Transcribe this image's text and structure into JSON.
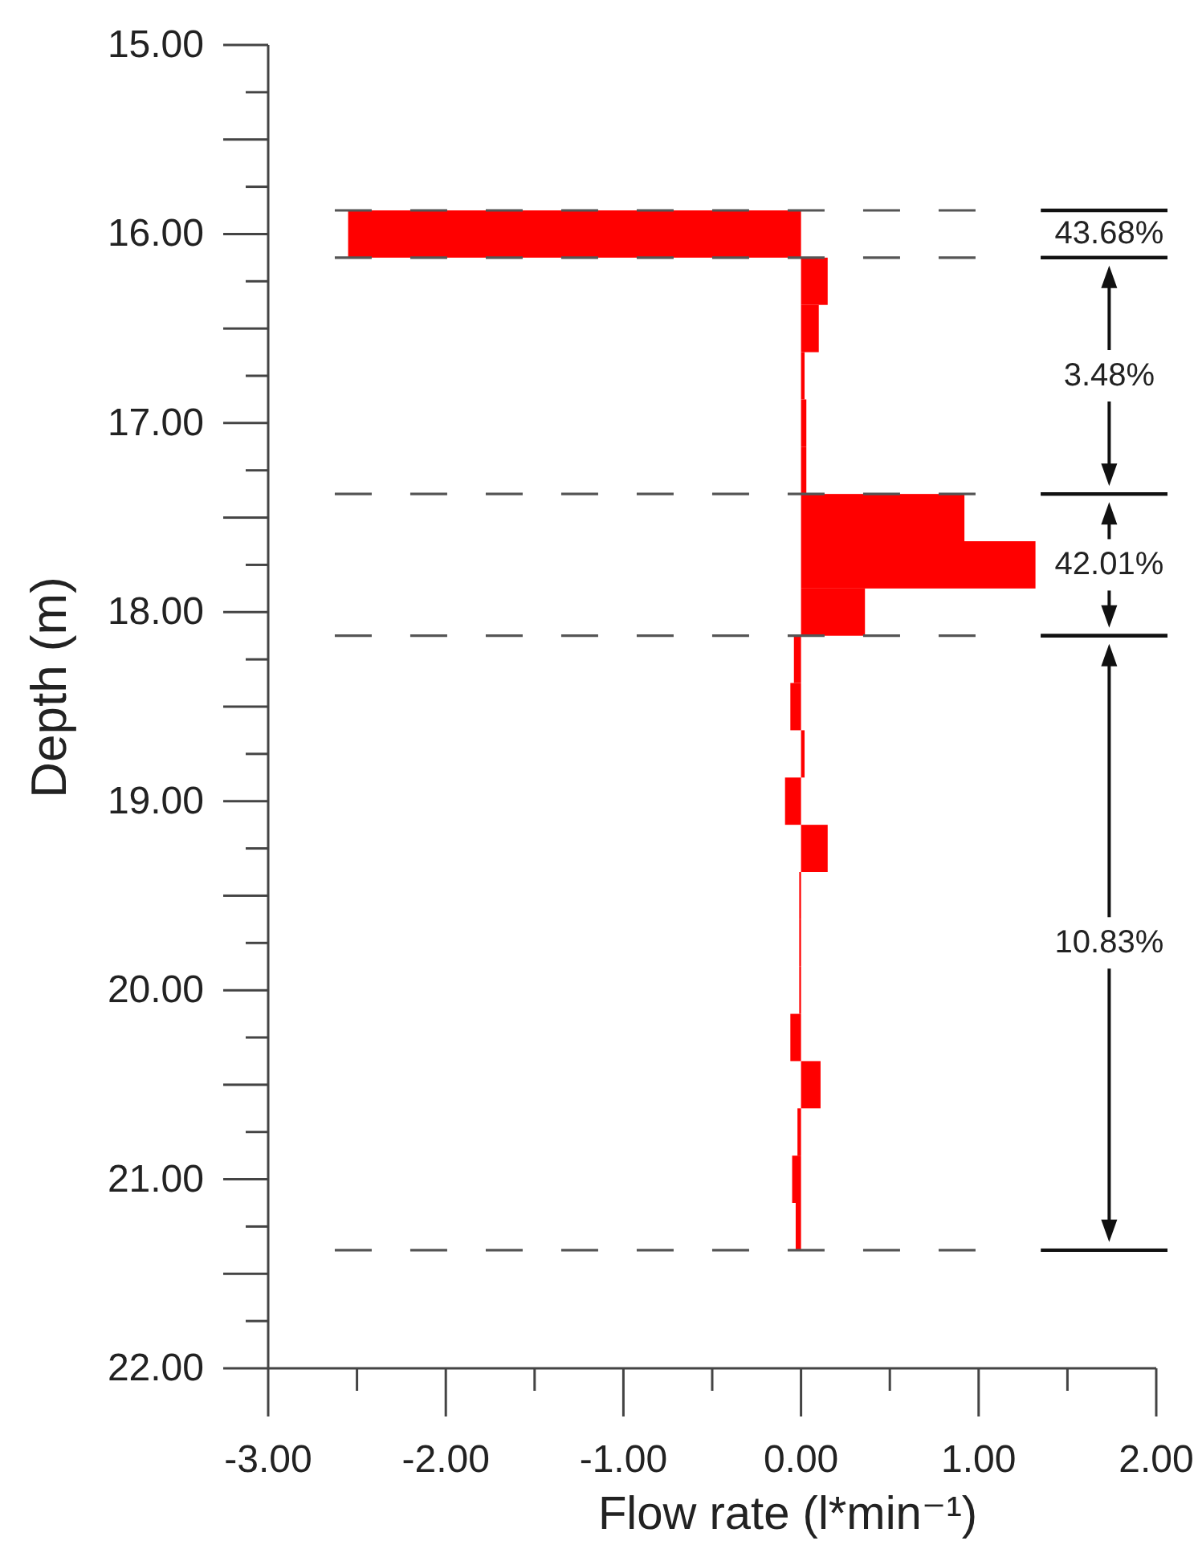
{
  "chart_data": {
    "type": "histogram",
    "orientation": "horizontal",
    "xlabel": "Flow rate (l*min⁻¹)",
    "ylabel": "Depth (m)",
    "bins": [
      15.875,
      16.125,
      16.375,
      16.625,
      16.875,
      17.125,
      17.375,
      17.625,
      17.875,
      18.125,
      18.375,
      18.625,
      18.875,
      19.125,
      19.375,
      19.625,
      19.875,
      20.125,
      20.375,
      20.625,
      20.875,
      21.125,
      21.375
    ],
    "values": [
      -2.55,
      0.15,
      0.1,
      0.02,
      0.03,
      0.03,
      0.92,
      1.32,
      0.36,
      -0.04,
      -0.06,
      0.02,
      -0.09,
      0.15,
      -0.01,
      -0.01,
      -0.01,
      -0.06,
      0.11,
      -0.02,
      -0.05,
      -0.03
    ],
    "color": "#ff0000",
    "xlim": [
      -3,
      2
    ],
    "xticks": [
      {
        "value": -3,
        "label": "-3.00"
      },
      {
        "value": -2.5,
        "label": null
      },
      {
        "value": -2,
        "label": "-2.00"
      },
      {
        "value": -1.5,
        "label": null
      },
      {
        "value": -1,
        "label": "-1.00"
      },
      {
        "value": -0.5,
        "label": null
      },
      {
        "value": 0,
        "label": "0.00"
      },
      {
        "value": 0.5,
        "label": null
      },
      {
        "value": 1,
        "label": "1.00"
      },
      {
        "value": 1.5,
        "label": null
      },
      {
        "value": 2,
        "label": "2.00"
      }
    ],
    "ylim": [
      22,
      15
    ],
    "yticks": [
      {
        "value": 15,
        "label": "15.00"
      },
      {
        "value": 15.25,
        "label": null
      },
      {
        "value": 15.5,
        "label": null
      },
      {
        "value": 15.75,
        "label": null
      },
      {
        "value": 16,
        "label": "16.00"
      },
      {
        "value": 16.25,
        "label": null
      },
      {
        "value": 16.5,
        "label": null
      },
      {
        "value": 16.75,
        "label": null
      },
      {
        "value": 17,
        "label": "17.00"
      },
      {
        "value": 17.25,
        "label": null
      },
      {
        "value": 17.5,
        "label": null
      },
      {
        "value": 17.75,
        "label": null
      },
      {
        "value": 18,
        "label": "18.00"
      },
      {
        "value": 18.25,
        "label": null
      },
      {
        "value": 18.5,
        "label": null
      },
      {
        "value": 18.75,
        "label": null
      },
      {
        "value": 19,
        "label": "19.00"
      },
      {
        "value": 19.25,
        "label": null
      },
      {
        "value": 19.5,
        "label": null
      },
      {
        "value": 19.75,
        "label": null
      },
      {
        "value": 20,
        "label": "20.00"
      },
      {
        "value": 20.25,
        "label": null
      },
      {
        "value": 20.5,
        "label": null
      },
      {
        "value": 20.75,
        "label": null
      },
      {
        "value": 21,
        "label": "21.00"
      },
      {
        "value": 21.25,
        "label": null
      },
      {
        "value": 21.5,
        "label": null
      },
      {
        "value": 21.75,
        "label": null
      },
      {
        "value": 22,
        "label": "22.00"
      }
    ],
    "ref_lines": [
      {
        "axis": "y",
        "value": 15.875,
        "line_style": "dashed",
        "color": "#555555"
      },
      {
        "axis": "y",
        "value": 16.125,
        "line_style": "dashed",
        "color": "#555555"
      },
      {
        "axis": "y",
        "value": 17.375,
        "line_style": "dashed",
        "color": "#555555"
      },
      {
        "axis": "y",
        "value": 18.125,
        "line_style": "dashed",
        "color": "#555555"
      },
      {
        "axis": "y",
        "value": 21.375,
        "line_style": "dashed",
        "color": "#555555"
      }
    ],
    "annotations": [
      "43.68%",
      "3.48%",
      "42.01%",
      "10.83%"
    ]
  }
}
